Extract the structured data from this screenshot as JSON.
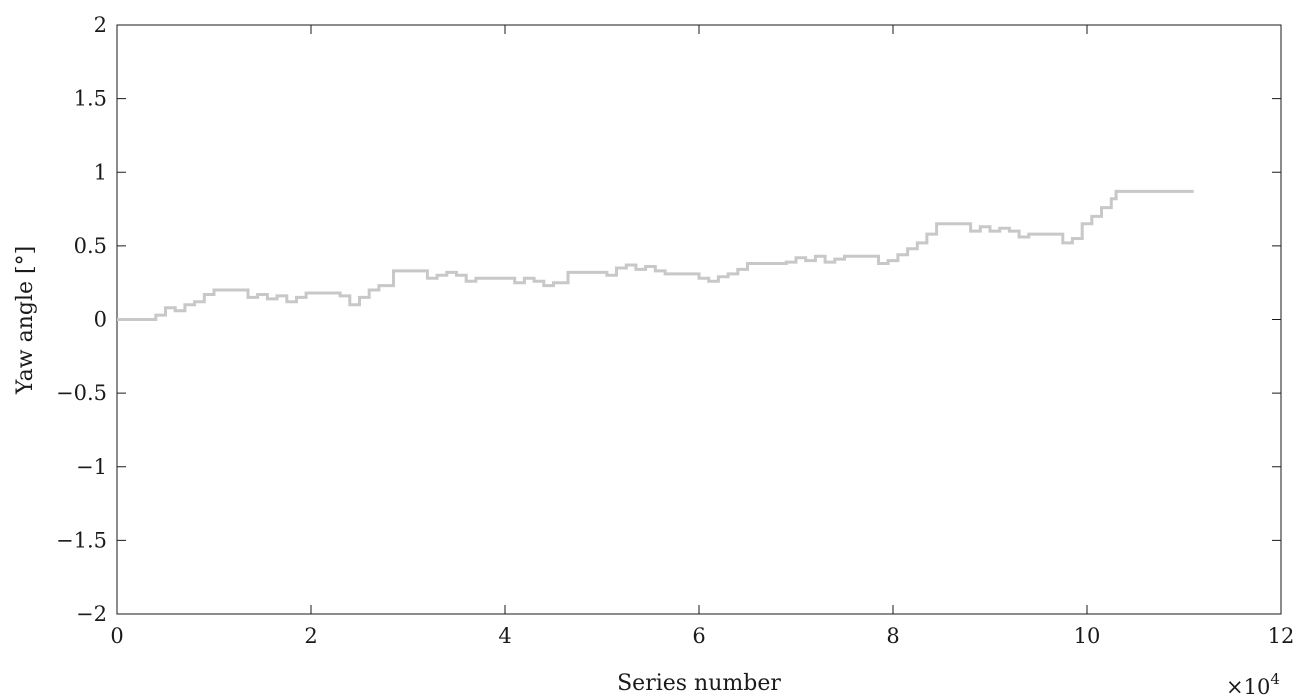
{
  "chart_data": {
    "type": "line",
    "title": "",
    "xlabel": "Series number",
    "ylabel": "Yaw angle [°]",
    "x_multiplier": {
      "base": "×10",
      "exponent": "4"
    },
    "xlim": [
      0,
      12
    ],
    "ylim": [
      -2,
      2
    ],
    "xticks": [
      0,
      2,
      4,
      6,
      8,
      10,
      12
    ],
    "yticks": [
      -2,
      -1.5,
      -1,
      -0.5,
      0,
      0.5,
      1,
      1.5,
      2
    ],
    "xtick_labels": [
      "0",
      "2",
      "4",
      "6",
      "8",
      "10",
      "12"
    ],
    "ytick_labels": [
      "−2",
      "−1.5",
      "−1",
      "−0.5",
      "0",
      "0.5",
      "1",
      "1.5",
      "2"
    ],
    "grid": false,
    "series_color": "#c8c8c8",
    "series": [
      {
        "x": [
          0,
          0.4,
          0.5,
          0.6,
          0.7,
          0.8,
          0.9,
          1.0,
          1.35,
          1.45,
          1.55,
          1.65,
          1.75,
          1.85,
          1.95,
          2.3,
          2.4,
          2.5,
          2.6,
          2.7,
          2.85,
          3.2,
          3.3,
          3.4,
          3.5,
          3.6,
          3.7,
          4.1,
          4.2,
          4.3,
          4.4,
          4.5,
          4.65,
          5.05,
          5.15,
          5.25,
          5.35,
          5.45,
          5.55,
          5.65,
          6.0,
          6.1,
          6.2,
          6.3,
          6.4,
          6.5,
          6.9,
          7.0,
          7.1,
          7.2,
          7.3,
          7.4,
          7.5,
          7.85,
          7.95,
          8.05,
          8.15,
          8.25,
          8.35,
          8.45,
          8.8,
          8.9,
          9.0,
          9.1,
          9.2,
          9.3,
          9.4,
          9.75,
          9.85,
          9.95,
          10.05,
          10.15,
          10.25,
          10.3,
          11.1
        ],
        "y": [
          0,
          0.03,
          0.08,
          0.06,
          0.1,
          0.12,
          0.17,
          0.2,
          0.15,
          0.17,
          0.14,
          0.16,
          0.12,
          0.15,
          0.18,
          0.16,
          0.1,
          0.15,
          0.2,
          0.23,
          0.33,
          0.28,
          0.3,
          0.32,
          0.3,
          0.26,
          0.28,
          0.25,
          0.28,
          0.26,
          0.23,
          0.25,
          0.32,
          0.3,
          0.35,
          0.37,
          0.34,
          0.36,
          0.33,
          0.31,
          0.28,
          0.26,
          0.29,
          0.31,
          0.34,
          0.38,
          0.39,
          0.42,
          0.4,
          0.43,
          0.39,
          0.41,
          0.43,
          0.38,
          0.4,
          0.44,
          0.48,
          0.52,
          0.58,
          0.65,
          0.6,
          0.63,
          0.6,
          0.62,
          0.6,
          0.56,
          0.58,
          0.52,
          0.55,
          0.65,
          0.7,
          0.76,
          0.82,
          0.87,
          0.87
        ]
      }
    ]
  }
}
